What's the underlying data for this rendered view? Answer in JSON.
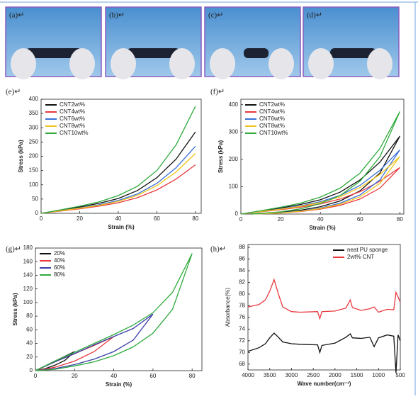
{
  "photos": [
    {
      "label": "(a)↵"
    },
    {
      "label": "(b)↵"
    },
    {
      "label": "(c)↵"
    },
    {
      "label": "(d)↵"
    }
  ],
  "chart_data": [
    {
      "type": "line",
      "label": "(e)↵",
      "xlabel": "Strain (%)",
      "ylabel": "Stress (kPa)",
      "legend": "upper left",
      "x": [
        0,
        10,
        20,
        30,
        40,
        50,
        60,
        70,
        80
      ],
      "xlim": [
        0,
        83
      ],
      "xticks": [
        0,
        20,
        40,
        60,
        80
      ],
      "ylim": [
        0,
        400
      ],
      "yticks": [
        0,
        50,
        100,
        150,
        200,
        250,
        300,
        350,
        400
      ],
      "series": [
        {
          "name": "CNT2wt%",
          "color": "#111111",
          "values": [
            0,
            10,
            22,
            35,
            52,
            80,
            125,
            190,
            285
          ]
        },
        {
          "name": "CNT4wt%",
          "color": "#e8383d",
          "values": [
            0,
            8,
            16,
            25,
            37,
            55,
            82,
            120,
            170
          ]
        },
        {
          "name": "CNT6wt%",
          "color": "#3a6fd8",
          "values": [
            0,
            9,
            19,
            30,
            45,
            68,
            105,
            160,
            235
          ]
        },
        {
          "name": "CNT8wt%",
          "color": "#f0c419",
          "values": [
            0,
            9,
            18,
            28,
            42,
            63,
            97,
            145,
            210
          ]
        },
        {
          "name": "CNT10wt%",
          "color": "#2eaa3c",
          "values": [
            0,
            12,
            25,
            40,
            62,
            95,
            150,
            240,
            375
          ]
        }
      ]
    },
    {
      "type": "line",
      "label": "(f)↵",
      "xlabel": "Strain (%)",
      "ylabel": "Stress (kPa)",
      "legend": "upper left",
      "x": [
        0,
        10,
        20,
        30,
        40,
        50,
        60,
        70,
        80,
        70,
        60,
        50,
        40,
        30,
        20,
        10,
        5
      ],
      "xlim": [
        0,
        82
      ],
      "xticks": [
        0,
        20,
        40,
        60,
        80
      ],
      "ylim": [
        0,
        420
      ],
      "yticks": [
        0,
        100,
        200,
        300,
        400
      ],
      "series": [
        {
          "name": "CNT2wt%",
          "color": "#111111",
          "values": [
            0,
            10,
            22,
            35,
            52,
            80,
            125,
            190,
            285,
            150,
            85,
            48,
            27,
            14,
            6,
            2,
            0
          ]
        },
        {
          "name": "CNT4wt%",
          "color": "#e8383d",
          "values": [
            0,
            8,
            16,
            25,
            37,
            55,
            82,
            120,
            170,
            95,
            55,
            32,
            18,
            9,
            4,
            1,
            0
          ]
        },
        {
          "name": "CNT6wt%",
          "color": "#3a6fd8",
          "values": [
            0,
            9,
            19,
            30,
            45,
            68,
            105,
            160,
            235,
            125,
            70,
            40,
            22,
            11,
            5,
            1,
            0
          ]
        },
        {
          "name": "CNT8wt%",
          "color": "#f0c419",
          "values": [
            0,
            9,
            18,
            28,
            42,
            63,
            97,
            145,
            210,
            112,
            63,
            36,
            20,
            10,
            4,
            1,
            0
          ]
        },
        {
          "name": "CNT10wt%",
          "color": "#2eaa3c",
          "values": [
            0,
            12,
            25,
            40,
            62,
            95,
            150,
            240,
            375,
            210,
            120,
            68,
            38,
            19,
            8,
            2,
            0
          ]
        }
      ]
    },
    {
      "type": "line",
      "label": "(g)↵",
      "xlabel": "Strain (%)",
      "ylabel": "Stress (kPa)",
      "legend": "upper left",
      "xlim": [
        0,
        85
      ],
      "xticks": [
        0,
        20,
        40,
        60,
        80
      ],
      "ylim": [
        0,
        180
      ],
      "yticks": [
        0,
        20,
        40,
        60,
        80,
        100,
        120,
        140,
        160,
        180
      ],
      "series": [
        {
          "name": "20%",
          "color": "#111111",
          "x": [
            0,
            5,
            10,
            15,
            20,
            15,
            10,
            5,
            0
          ],
          "values": [
            0,
            7,
            14,
            21,
            28,
            15,
            8,
            3,
            0
          ]
        },
        {
          "name": "40%",
          "color": "#e8383d",
          "x": [
            0,
            10,
            20,
            30,
            40,
            30,
            20,
            10,
            0
          ],
          "values": [
            0,
            13,
            25,
            37,
            50,
            28,
            14,
            5,
            0
          ]
        },
        {
          "name": "60%",
          "color": "#3a3fa8",
          "x": [
            0,
            10,
            20,
            30,
            40,
            50,
            60,
            50,
            40,
            30,
            20,
            10,
            0
          ],
          "values": [
            0,
            13,
            25,
            38,
            50,
            62,
            83,
            45,
            28,
            17,
            9,
            3,
            0
          ]
        },
        {
          "name": "80%",
          "color": "#2eaa3c",
          "x": [
            0,
            10,
            20,
            30,
            40,
            50,
            60,
            70,
            80,
            70,
            60,
            50,
            40,
            30,
            20,
            10,
            0
          ],
          "values": [
            0,
            14,
            27,
            40,
            53,
            67,
            85,
            115,
            172,
            90,
            55,
            35,
            22,
            13,
            7,
            2,
            0
          ]
        }
      ]
    },
    {
      "type": "line",
      "label": "(h)↵",
      "xlabel": "Wave number(cm⁻¹)",
      "ylabel": "Absorbance(%)",
      "legend": "upper right",
      "x": [
        4000,
        3750,
        3600,
        3500,
        3400,
        3300,
        3200,
        3000,
        2800,
        2400,
        2350,
        2300,
        2000,
        1750,
        1650,
        1600,
        1400,
        1200,
        1100,
        1000,
        800,
        650,
        600,
        550,
        500
      ],
      "xlim": [
        4000,
        500
      ],
      "xticks": [
        4000,
        3500,
        3000,
        2500,
        2000,
        1500,
        1000,
        500
      ],
      "ylim": [
        67,
        88.5
      ],
      "yticks": [
        68,
        70,
        72,
        74,
        76,
        78,
        80,
        82,
        84,
        86,
        88
      ],
      "series": [
        {
          "name": "neat PU sponge",
          "color": "#111111",
          "values": [
            70.2,
            70.8,
            71.5,
            72.5,
            73.3,
            72.6,
            71.8,
            71.5,
            71.4,
            71.3,
            70.0,
            71.2,
            71.6,
            72.6,
            73.2,
            72.5,
            72.4,
            72.6,
            71.0,
            72.5,
            73.0,
            72.8,
            66.5,
            73.0,
            72.0
          ]
        },
        {
          "name": "2wt% CNT",
          "color": "#e8383d",
          "values": [
            77.8,
            78.2,
            79.0,
            80.5,
            82.5,
            80.0,
            77.8,
            77.0,
            76.9,
            77.0,
            75.8,
            77.0,
            77.1,
            77.6,
            79.0,
            77.7,
            77.2,
            77.5,
            77.8,
            76.9,
            77.4,
            77.3,
            80.3,
            79.5,
            78.6
          ]
        }
      ]
    }
  ]
}
